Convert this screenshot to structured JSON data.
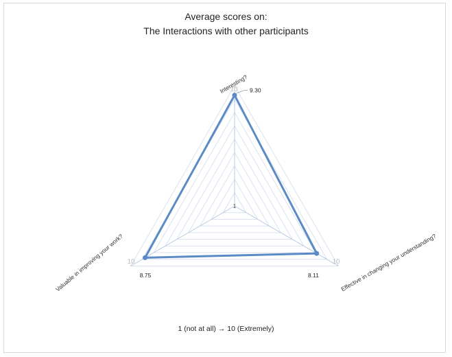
{
  "chart_data": {
    "type": "radar",
    "title_line1": "Average scores on:",
    "title_line2": "The Interactions with other participants",
    "categories": [
      "Interesting?",
      "Effective in changing your understanding?",
      "Valuable in improving your work?"
    ],
    "values": [
      9.3,
      8.11,
      8.75
    ],
    "value_labels": [
      "9.30",
      "8.11",
      "8.75"
    ],
    "range": [
      1,
      10
    ],
    "min_label": "1",
    "max_label": "10",
    "gridlines": true,
    "footnote": "1 (not at all) → 10 (Extremely)",
    "colors": {
      "series": "#5b8ac6",
      "grid": "#d9e2ee",
      "spoke": "#b8cbe4",
      "axis_max_label": "#bfbfbf"
    }
  }
}
